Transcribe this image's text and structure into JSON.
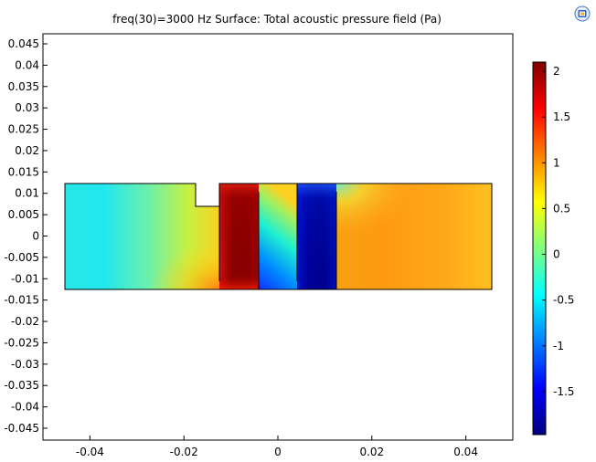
{
  "title": "freq(30)=3000 Hz   Surface: Total acoustic pressure field (Pa)",
  "chart_data": {
    "type": "heatmap",
    "title": "freq(30)=3000 Hz   Surface: Total acoustic pressure field (Pa)",
    "xlabel": "",
    "ylabel": "",
    "xlim": [
      -0.05,
      0.05
    ],
    "ylim": [
      -0.048,
      0.048
    ],
    "x_ticks": [
      -0.04,
      -0.02,
      0,
      0.02,
      0.04
    ],
    "x_tick_labels": [
      "-0.04",
      "-0.02",
      "0",
      "0.02",
      "0.04"
    ],
    "y_ticks": [
      0.045,
      0.04,
      0.035,
      0.03,
      0.025,
      0.02,
      0.015,
      0.01,
      0.005,
      0,
      -0.005,
      -0.01,
      -0.015,
      -0.02,
      -0.025,
      -0.03,
      -0.035,
      -0.04,
      -0.045
    ],
    "y_tick_labels": [
      "0.045",
      "0.04",
      "0.035",
      "0.03",
      "0.025",
      "0.02",
      "0.015",
      "0.01",
      "0.005",
      "0",
      "-0.005",
      "-0.01",
      "-0.015",
      "-0.02",
      "-0.025",
      "-0.03",
      "-0.035",
      "-0.04",
      "-0.045"
    ],
    "colorbar": {
      "min": -1.97,
      "max": 2.1,
      "ticks": [
        2,
        1.5,
        1,
        0.5,
        0,
        -0.5,
        -1,
        -1.5
      ],
      "tick_labels": [
        "2",
        "1.5",
        "1",
        "0.5",
        "0",
        "-0.5",
        "-1",
        "-1.5"
      ],
      "colormap": "rainbow",
      "colors": [
        "#00007f",
        "#0000ff",
        "#00ffff",
        "#ffff00",
        "#ff8000",
        "#ff0000",
        "#7f0000"
      ]
    },
    "domain": {
      "x_range": [
        -0.0505,
        0.0495
      ],
      "y_range": [
        -0.0125,
        0.0125
      ],
      "notch": {
        "x": [
          -0.0195,
          -0.014
        ],
        "y_bottom": 0.0068
      },
      "inner_walls": [
        {
          "x": -0.014,
          "y": [
            -0.0105,
            0.0125
          ]
        },
        {
          "x": -0.0045,
          "y": [
            -0.0125,
            0.0105
          ]
        },
        {
          "x": 0.0045,
          "y": [
            -0.0105,
            0.0125
          ]
        },
        {
          "x": 0.0135,
          "y": [
            -0.0125,
            0.0105
          ]
        }
      ]
    },
    "pressure_field_approx": [
      {
        "region": "inlet",
        "x": [
          -0.0505,
          -0.014
        ],
        "value_left": -0.45,
        "value_right": 0.5
      },
      {
        "region": "resonator-1",
        "x": [
          -0.014,
          -0.0045
        ],
        "value": 2.0
      },
      {
        "region": "gap",
        "x": [
          -0.0045,
          0.0045
        ],
        "value_left": -1.1,
        "value_right": 0.6
      },
      {
        "region": "resonator-2",
        "x": [
          0.0045,
          0.0135
        ],
        "value": -1.9
      },
      {
        "region": "outlet",
        "x": [
          0.0135,
          0.0495
        ],
        "value_left": 1.0,
        "value_right": 0.6
      }
    ]
  }
}
